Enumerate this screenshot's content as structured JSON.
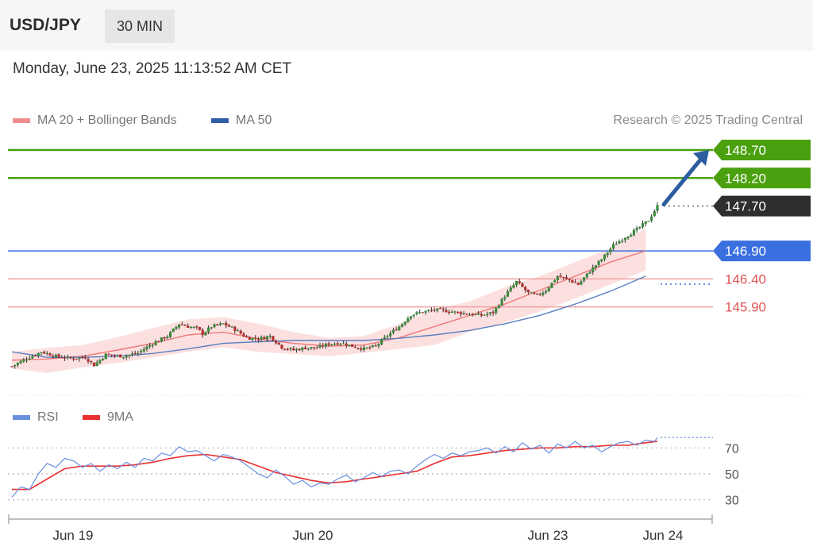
{
  "header": {
    "symbol": "USD/JPY",
    "timeframe": "30 MIN"
  },
  "timestamp": "Monday, June 23, 2025 11:13:52 AM CET",
  "legend": {
    "items": [
      {
        "label": "MA 20 + Bollinger Bands",
        "color": "#f08e8e"
      },
      {
        "label": "MA 50",
        "color": "#2f5ea8"
      }
    ],
    "credit": "Research © 2025 Trading Central"
  },
  "rsi_legend": {
    "items": [
      {
        "label": "RSI",
        "color": "#6a8fe0"
      },
      {
        "label": "9MA",
        "color": "#e83030"
      }
    ]
  },
  "colors": {
    "resistance": "#4aa00f",
    "current": "#2e2e2e",
    "pivot": "#3a6fe0",
    "support": "#e05555",
    "candle_up": "#3c8a3c",
    "candle_down": "#b33030",
    "band_fill": "#fbdada",
    "arrow": "#2c5d9f"
  },
  "chart_data": [
    {
      "type": "candlestick",
      "title": "USD/JPY",
      "timeframe": "30 MIN",
      "x_ticks": [
        "Jun 19",
        "Jun 20",
        "Jun 23",
        "Jun 24"
      ],
      "ylim": [
        144.4,
        149.0
      ],
      "levels": [
        {
          "value": "148.70",
          "kind": "resistance"
        },
        {
          "value": "148.20",
          "kind": "resistance"
        },
        {
          "value": "147.70",
          "kind": "current"
        },
        {
          "value": "146.90",
          "kind": "pivot"
        },
        {
          "value": "146.40",
          "kind": "support"
        },
        {
          "value": "145.90",
          "kind": "support"
        }
      ],
      "close_path": [
        [
          0,
          144.84
        ],
        [
          5,
          144.98
        ],
        [
          10,
          145.1
        ],
        [
          15,
          145.02
        ],
        [
          20,
          144.98
        ],
        [
          25,
          145.0
        ],
        [
          28,
          144.86
        ],
        [
          32,
          145.05
        ],
        [
          38,
          145.02
        ],
        [
          43,
          145.08
        ],
        [
          48,
          145.25
        ],
        [
          53,
          145.38
        ],
        [
          57,
          145.6
        ],
        [
          60,
          145.55
        ],
        [
          63,
          145.52
        ],
        [
          65,
          145.42
        ],
        [
          68,
          145.55
        ],
        [
          72,
          145.6
        ],
        [
          76,
          145.5
        ],
        [
          80,
          145.35
        ],
        [
          84,
          145.33
        ],
        [
          88,
          145.38
        ],
        [
          92,
          145.18
        ],
        [
          96,
          145.13
        ],
        [
          100,
          145.17
        ],
        [
          104,
          145.17
        ],
        [
          108,
          145.24
        ],
        [
          112,
          145.26
        ],
        [
          116,
          145.2
        ],
        [
          120,
          145.15
        ],
        [
          124,
          145.2
        ],
        [
          128,
          145.39
        ],
        [
          132,
          145.55
        ],
        [
          136,
          145.76
        ],
        [
          140,
          145.81
        ],
        [
          144,
          145.85
        ],
        [
          148,
          145.83
        ],
        [
          152,
          145.8
        ],
        [
          156,
          145.77
        ],
        [
          160,
          145.75
        ],
        [
          164,
          145.8
        ],
        [
          168,
          146.1
        ],
        [
          172,
          146.35
        ],
        [
          176,
          146.15
        ],
        [
          179,
          146.1
        ],
        [
          182,
          146.2
        ],
        [
          186,
          146.45
        ],
        [
          190,
          146.38
        ],
        [
          193,
          146.3
        ],
        [
          197,
          146.54
        ],
        [
          201,
          146.75
        ],
        [
          205,
          147.0
        ],
        [
          209,
          147.15
        ],
        [
          213,
          147.28
        ],
        [
          217,
          147.45
        ],
        [
          220,
          147.7
        ]
      ],
      "ma20": [
        [
          0,
          144.95
        ],
        [
          12,
          144.97
        ],
        [
          24,
          145.02
        ],
        [
          36,
          145.13
        ],
        [
          48,
          145.25
        ],
        [
          60,
          145.4
        ],
        [
          72,
          145.45
        ],
        [
          84,
          145.33
        ],
        [
          96,
          145.25
        ],
        [
          108,
          145.2
        ],
        [
          120,
          145.22
        ],
        [
          132,
          145.35
        ],
        [
          144,
          145.55
        ],
        [
          156,
          145.75
        ],
        [
          168,
          145.95
        ],
        [
          180,
          146.2
        ],
        [
          192,
          146.45
        ],
        [
          204,
          146.7
        ],
        [
          216,
          146.9
        ]
      ],
      "ma50": [
        [
          0,
          145.1
        ],
        [
          12,
          145.0
        ],
        [
          24,
          145.0
        ],
        [
          36,
          145.02
        ],
        [
          48,
          145.07
        ],
        [
          60,
          145.15
        ],
        [
          72,
          145.25
        ],
        [
          84,
          145.28
        ],
        [
          96,
          145.3
        ],
        [
          108,
          145.3
        ],
        [
          120,
          145.3
        ],
        [
          132,
          145.34
        ],
        [
          144,
          145.4
        ],
        [
          156,
          145.48
        ],
        [
          168,
          145.6
        ],
        [
          180,
          145.75
        ],
        [
          192,
          145.95
        ],
        [
          204,
          146.18
        ],
        [
          216,
          146.45
        ]
      ],
      "bollinger": {
        "upper": [
          [
            0,
            145.1
          ],
          [
            12,
            145.17
          ],
          [
            24,
            145.22
          ],
          [
            36,
            145.36
          ],
          [
            48,
            145.52
          ],
          [
            60,
            145.68
          ],
          [
            72,
            145.72
          ],
          [
            84,
            145.6
          ],
          [
            96,
            145.45
          ],
          [
            108,
            145.35
          ],
          [
            120,
            145.38
          ],
          [
            132,
            145.6
          ],
          [
            144,
            145.85
          ],
          [
            156,
            146.0
          ],
          [
            168,
            146.25
          ],
          [
            180,
            146.45
          ],
          [
            192,
            146.7
          ],
          [
            204,
            146.95
          ],
          [
            216,
            147.3
          ]
        ],
        "lower": [
          [
            0,
            144.8
          ],
          [
            12,
            144.72
          ],
          [
            24,
            144.82
          ],
          [
            36,
            144.9
          ],
          [
            48,
            145.0
          ],
          [
            60,
            145.1
          ],
          [
            72,
            145.18
          ],
          [
            84,
            145.1
          ],
          [
            96,
            145.06
          ],
          [
            108,
            145.02
          ],
          [
            120,
            145.08
          ],
          [
            132,
            145.15
          ],
          [
            144,
            145.22
          ],
          [
            156,
            145.45
          ],
          [
            168,
            145.62
          ],
          [
            180,
            145.82
          ],
          [
            192,
            146.05
          ],
          [
            204,
            146.3
          ],
          [
            216,
            146.55
          ]
        ]
      },
      "projection": {
        "from": "147.70",
        "to": "148.70"
      }
    },
    {
      "type": "line",
      "title": "RSI",
      "ylim": [
        25,
        80
      ],
      "y_ticks": [
        30,
        50,
        70
      ],
      "series": [
        {
          "name": "RSI",
          "points": [
            [
              0,
              32
            ],
            [
              3,
              40
            ],
            [
              6,
              38
            ],
            [
              9,
              50
            ],
            [
              12,
              58
            ],
            [
              15,
              55
            ],
            [
              18,
              62
            ],
            [
              21,
              60
            ],
            [
              24,
              55
            ],
            [
              27,
              58
            ],
            [
              30,
              52
            ],
            [
              33,
              57
            ],
            [
              36,
              54
            ],
            [
              39,
              59
            ],
            [
              42,
              55
            ],
            [
              45,
              62
            ],
            [
              48,
              60
            ],
            [
              51,
              66
            ],
            [
              54,
              64
            ],
            [
              57,
              71
            ],
            [
              60,
              67
            ],
            [
              63,
              68
            ],
            [
              66,
              64
            ],
            [
              69,
              60
            ],
            [
              72,
              65
            ],
            [
              75,
              63
            ],
            [
              78,
              60
            ],
            [
              81,
              55
            ],
            [
              84,
              50
            ],
            [
              87,
              47
            ],
            [
              90,
              53
            ],
            [
              93,
              48
            ],
            [
              96,
              42
            ],
            [
              99,
              45
            ],
            [
              102,
              40
            ],
            [
              105,
              43
            ],
            [
              108,
              42
            ],
            [
              111,
              46
            ],
            [
              114,
              49
            ],
            [
              117,
              44
            ],
            [
              120,
              47
            ],
            [
              123,
              51
            ],
            [
              126,
              48
            ],
            [
              129,
              52
            ],
            [
              132,
              53
            ],
            [
              135,
              50
            ],
            [
              138,
              56
            ],
            [
              141,
              61
            ],
            [
              144,
              65
            ],
            [
              147,
              62
            ],
            [
              150,
              66
            ],
            [
              153,
              64
            ],
            [
              156,
              67
            ],
            [
              159,
              68
            ],
            [
              162,
              70
            ],
            [
              165,
              66
            ],
            [
              168,
              71
            ],
            [
              171,
              67
            ],
            [
              174,
              74
            ],
            [
              177,
              69
            ],
            [
              180,
              72
            ],
            [
              183,
              66
            ],
            [
              186,
              73
            ],
            [
              189,
              70
            ],
            [
              192,
              75
            ],
            [
              195,
              70
            ],
            [
              198,
              72
            ],
            [
              201,
              67
            ],
            [
              204,
              71
            ],
            [
              207,
              74
            ],
            [
              210,
              75
            ],
            [
              213,
              72
            ],
            [
              216,
              76
            ],
            [
              219,
              75
            ],
            [
              220,
              78
            ]
          ]
        },
        {
          "name": "9MA",
          "points": [
            [
              0,
              38
            ],
            [
              6,
              38
            ],
            [
              12,
              46
            ],
            [
              18,
              54
            ],
            [
              24,
              56
            ],
            [
              30,
              56
            ],
            [
              36,
              56
            ],
            [
              42,
              57
            ],
            [
              48,
              59
            ],
            [
              54,
              62
            ],
            [
              60,
              64
            ],
            [
              66,
              65
            ],
            [
              72,
              63
            ],
            [
              78,
              61
            ],
            [
              84,
              56
            ],
            [
              90,
              51
            ],
            [
              96,
              48
            ],
            [
              102,
              45
            ],
            [
              108,
              43
            ],
            [
              114,
              44
            ],
            [
              120,
              46
            ],
            [
              126,
              48
            ],
            [
              132,
              50
            ],
            [
              138,
              52
            ],
            [
              144,
              58
            ],
            [
              150,
              63
            ],
            [
              156,
              64
            ],
            [
              162,
              66
            ],
            [
              168,
              68
            ],
            [
              174,
              69
            ],
            [
              180,
              70
            ],
            [
              186,
              70
            ],
            [
              192,
              71
            ],
            [
              198,
              71
            ],
            [
              204,
              72
            ],
            [
              210,
              72
            ],
            [
              216,
              74
            ],
            [
              220,
              75
            ]
          ]
        }
      ]
    }
  ]
}
